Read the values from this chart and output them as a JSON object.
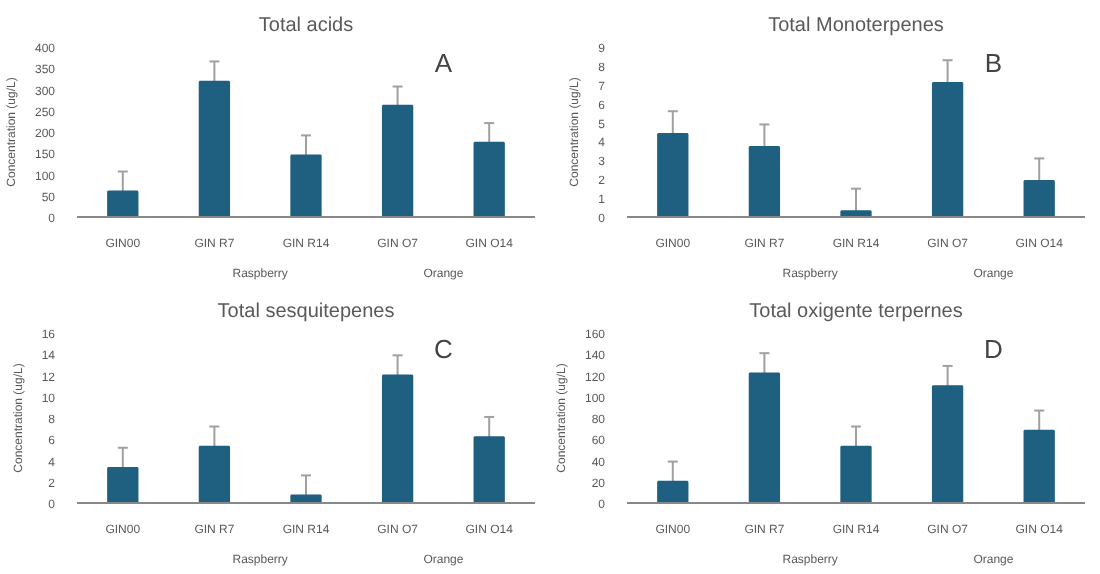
{
  "chart_data": [
    {
      "type": "bar",
      "title": "Total acids",
      "ylabel": "Concentration (ug/L)",
      "categories": [
        "GIN00",
        "GIN R7",
        "GIN R14",
        "GIN O7",
        "GIN O14"
      ],
      "values": [
        60,
        318,
        145,
        262,
        175
      ],
      "errors": [
        47,
        48,
        47,
        45,
        46
      ],
      "color": "#1f5f80",
      "ylim": [
        0,
        400
      ],
      "yticks": [
        0,
        50,
        100,
        150,
        200,
        250,
        300,
        350,
        400
      ],
      "grid": false,
      "annotations": [
        "A",
        "Raspberry",
        "Orange"
      ]
    },
    {
      "type": "bar",
      "title": "Total Monoterpenes",
      "ylabel": "Concentration (ug/L)",
      "categories": [
        "GIN00",
        "GIN R7",
        "GIN R14",
        "GIN O7",
        "GIN O14"
      ],
      "values": [
        4.4,
        3.7,
        0.3,
        7.1,
        1.9
      ],
      "errors": [
        1.2,
        1.2,
        1.2,
        1.2,
        1.2
      ],
      "color": "#1f5f80",
      "ylim": [
        0,
        9
      ],
      "yticks": [
        0,
        1,
        2,
        3,
        4,
        5,
        6,
        7,
        8,
        9
      ],
      "grid": false,
      "annotations": [
        "B",
        "Raspberry",
        "Orange"
      ]
    },
    {
      "type": "bar",
      "title": "Total sesquitepenes",
      "ylabel": "Concentration (ug/L)",
      "categories": [
        "GIN00",
        "GIN R7",
        "GIN R14",
        "GIN O7",
        "GIN O14"
      ],
      "values": [
        3.3,
        5.3,
        0.7,
        12,
        6.2
      ],
      "errors": [
        1.9,
        1.9,
        1.9,
        1.9,
        1.9
      ],
      "color": "#1f5f80",
      "ylim": [
        0,
        16
      ],
      "yticks": [
        0,
        2,
        4,
        6,
        8,
        10,
        12,
        14,
        16
      ],
      "grid": false,
      "annotations": [
        "C",
        "Raspberry",
        "Orange"
      ]
    },
    {
      "type": "bar",
      "title": "Total oxigente terpernes",
      "ylabel": "Concentration (ug/L)",
      "categories": [
        "GIN00",
        "GIN R7",
        "GIN R14",
        "GIN O7",
        "GIN O14"
      ],
      "values": [
        20,
        122,
        53,
        110,
        68
      ],
      "errors": [
        19,
        19,
        19,
        19,
        19
      ],
      "color": "#1f5f80",
      "ylim": [
        0,
        160
      ],
      "yticks": [
        0,
        20,
        40,
        60,
        80,
        100,
        120,
        140,
        160
      ],
      "grid": false,
      "annotations": [
        "D",
        "Raspberry",
        "Orange"
      ]
    }
  ]
}
